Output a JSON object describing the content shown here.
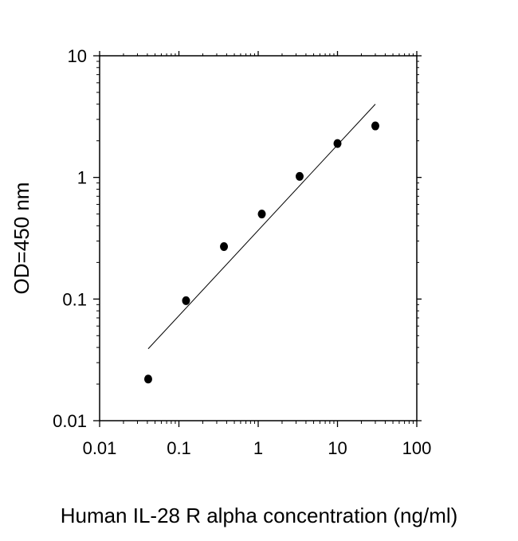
{
  "chart_data": {
    "type": "scatter",
    "title": "",
    "xlabel": "Human IL-28 R alpha concentration (ng/ml)",
    "ylabel": "OD=450 nm",
    "xscale": "log",
    "yscale": "log",
    "xlim": [
      0.01,
      100
    ],
    "ylim": [
      0.01,
      10
    ],
    "x_ticks": [
      0.01,
      0.1,
      1,
      10,
      100
    ],
    "x_tick_labels": [
      "0.01",
      "0.1",
      "1",
      "10",
      "100"
    ],
    "y_ticks": [
      0.01,
      0.1,
      1,
      10
    ],
    "y_tick_labels": [
      "0.01",
      "0.1",
      "1",
      "10"
    ],
    "grid": false,
    "legend": "none",
    "points": {
      "x": [
        0.041,
        0.123,
        0.37,
        1.11,
        3.33,
        10,
        30
      ],
      "y": [
        0.022,
        0.097,
        0.27,
        0.5,
        1.02,
        1.9,
        2.65
      ]
    },
    "fit_line": {
      "x": [
        0.041,
        30
      ],
      "y": [
        0.039,
        4.0
      ]
    },
    "colors": {
      "points": "#000000",
      "line": "#000000",
      "axes": "#000000"
    }
  }
}
